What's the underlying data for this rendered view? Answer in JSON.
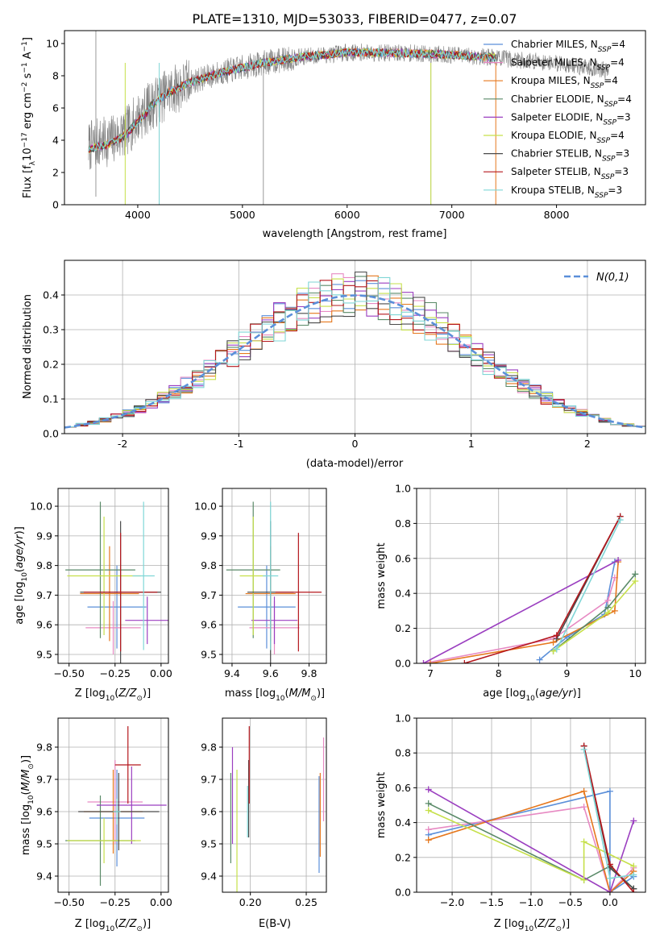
{
  "figure_title": "PLATE=1310, MJD=53033, FIBERID=0477, z=0.07",
  "colors": {
    "Chabrier MILES": "#5b8fd9",
    "Salpeter MILES": "#e78ac3",
    "Kroupa MILES": "#e6781e",
    "Chabrier ELODIE": "#5a8a68",
    "Salpeter ELODIE": "#9b3fc0",
    "Kroupa ELODIE": "#c6e04a",
    "Chabrier STELIB": "#4a4a4a",
    "Salpeter STELIB": "#b5171d",
    "Kroupa STELIB": "#7fd6d6",
    "data": "#808080",
    "normal": "#5b8fd9"
  },
  "model_order": [
    "Chabrier MILES",
    "Salpeter MILES",
    "Kroupa MILES",
    "Chabrier ELODIE",
    "Salpeter ELODIE",
    "Kroupa ELODIE",
    "Chabrier STELIB",
    "Salpeter STELIB",
    "Kroupa STELIB"
  ],
  "chart_data": [
    {
      "id": "spectrum",
      "type": "line",
      "title": "PLATE=1310, MJD=53033, FIBERID=0477, z=0.07",
      "xlabel": "wavelength [Angstrom, rest frame]",
      "ylabel": "Flux [f_λ 10^-17 erg cm^-2 s^-1 A^-1]",
      "xlim": [
        3300,
        8850
      ],
      "ylim": [
        0,
        10.8
      ],
      "xticks": [
        4000,
        5000,
        6000,
        7000,
        8000
      ],
      "yticks": [
        0,
        2,
        4,
        6,
        8,
        10
      ],
      "grid": false,
      "legend_position": "right",
      "legend": [
        {
          "name": "Chabrier MILES",
          "n_ssp": 4
        },
        {
          "name": "Salpeter MILES",
          "n_ssp": 4
        },
        {
          "name": "Kroupa MILES",
          "n_ssp": 4
        },
        {
          "name": "Chabrier ELODIE",
          "n_ssp": 4
        },
        {
          "name": "Salpeter ELODIE",
          "n_ssp": 3
        },
        {
          "name": "Kroupa ELODIE",
          "n_ssp": 4
        },
        {
          "name": "Chabrier STELIB",
          "n_ssp": 3
        },
        {
          "name": "Salpeter STELIB",
          "n_ssp": 3
        },
        {
          "name": "Kroupa STELIB",
          "n_ssp": 3
        }
      ],
      "continuum": {
        "wavelength": [
          3530,
          3600,
          3700,
          3800,
          3900,
          4000,
          4100,
          4200,
          4300,
          4400,
          4500,
          4600,
          4800,
          5000,
          5200,
          5400,
          5600,
          5800,
          6000,
          6200,
          6400,
          6600,
          6800,
          7000,
          7200,
          7400,
          7600,
          7800,
          8000,
          8200,
          8400,
          8500
        ],
        "flux": [
          3.6,
          3.8,
          3.9,
          4.2,
          4.6,
          5.4,
          6.0,
          6.5,
          7.0,
          7.3,
          7.6,
          7.8,
          8.2,
          8.5,
          8.8,
          9.0,
          9.2,
          9.3,
          9.45,
          9.45,
          9.4,
          9.4,
          9.35,
          9.3,
          9.2,
          9.15,
          9.0,
          8.9,
          8.8,
          8.6,
          8.4,
          8.3
        ]
      }
    },
    {
      "id": "residuals",
      "type": "line",
      "xlabel": "(data-model)/error",
      "ylabel": "Normed distribution",
      "xlim": [
        -2.5,
        2.5
      ],
      "ylim": [
        0,
        0.5
      ],
      "xticks": [
        -2,
        -1,
        0,
        1,
        2
      ],
      "yticks": [
        0.0,
        0.1,
        0.2,
        0.3,
        0.4
      ],
      "grid": true,
      "legend_position": "top-right",
      "normal_label": "N(0,1)",
      "bin_width": 0.1
    },
    {
      "id": "age_vs_Z",
      "type": "scatter",
      "xlabel": "Z [log10(Z/Z⊙)]",
      "ylabel": "age [log10(age/yr)]",
      "xlim": [
        -0.56,
        0.04
      ],
      "ylim": [
        9.47,
        10.06
      ],
      "xticks": [
        -0.5,
        -0.25,
        0.0
      ],
      "xtick_labels": [
        "−0.50",
        "−0.25",
        "0.00"
      ],
      "yticks": [
        9.5,
        9.6,
        9.7,
        9.8,
        9.9,
        10.0
      ],
      "grid": true,
      "points": [
        {
          "model": "Chabrier MILES",
          "x": -0.24,
          "xerr": 0.16,
          "y": 9.66,
          "yerr": 0.14
        },
        {
          "model": "Salpeter MILES",
          "x": -0.26,
          "xerr": 0.15,
          "y": 9.59,
          "yerr": 0.09
        },
        {
          "model": "Kroupa MILES",
          "x": -0.28,
          "xerr": 0.16,
          "y": 9.705,
          "yerr": 0.16
        },
        {
          "model": "Chabrier ELODIE",
          "x": -0.33,
          "xerr": 0.19,
          "y": 9.785,
          "yerr": 0.23
        },
        {
          "model": "Salpeter ELODIE",
          "x": -0.075,
          "xerr": 0.12,
          "y": 9.615,
          "yerr": 0.08
        },
        {
          "model": "Kroupa ELODIE",
          "x": -0.31,
          "xerr": 0.2,
          "y": 9.765,
          "yerr": 0.2
        },
        {
          "model": "Chabrier STELIB",
          "x": -0.22,
          "xerr": 0.22,
          "y": 9.71,
          "yerr": 0.24
        },
        {
          "model": "Salpeter STELIB",
          "x": -0.22,
          "xerr": 0.2,
          "y": 9.71,
          "yerr": 0.2
        },
        {
          "model": "Kroupa STELIB",
          "x": -0.095,
          "xerr": 0.06,
          "y": 9.765,
          "yerr": 0.25
        }
      ]
    },
    {
      "id": "age_vs_mass",
      "type": "scatter",
      "xlabel": "mass [log10(M/M⊙)]",
      "ylabel": "",
      "xlim": [
        9.35,
        9.89
      ],
      "ylim": [
        9.47,
        10.06
      ],
      "xticks": [
        9.4,
        9.6,
        9.8
      ],
      "yticks": [
        9.5,
        9.6,
        9.7,
        9.8,
        9.9,
        10.0
      ],
      "grid": true,
      "points": [
        {
          "model": "Chabrier MILES",
          "x": 9.58,
          "xerr": 0.15,
          "y": 9.66,
          "yerr": 0.14
        },
        {
          "model": "Salpeter MILES",
          "x": 9.62,
          "xerr": 0.13,
          "y": 9.59,
          "yerr": 0.09
        },
        {
          "model": "Kroupa MILES",
          "x": 9.6,
          "xerr": 0.13,
          "y": 9.705,
          "yerr": 0.16
        },
        {
          "model": "Chabrier ELODIE",
          "x": 9.51,
          "xerr": 0.14,
          "y": 9.785,
          "yerr": 0.23
        },
        {
          "model": "Salpeter ELODIE",
          "x": 9.62,
          "xerr": 0.12,
          "y": 9.615,
          "yerr": 0.08
        },
        {
          "model": "Kroupa ELODIE",
          "x": 9.51,
          "xerr": 0.07,
          "y": 9.765,
          "yerr": 0.2
        },
        {
          "model": "Chabrier STELIB",
          "x": 9.6,
          "xerr": 0.12,
          "y": 9.71,
          "yerr": 0.24
        },
        {
          "model": "Salpeter STELIB",
          "x": 9.745,
          "xerr": 0.12,
          "y": 9.71,
          "yerr": 0.2
        },
        {
          "model": "Kroupa STELIB",
          "x": 9.6,
          "xerr": 0.04,
          "y": 9.765,
          "yerr": 0.25
        }
      ]
    },
    {
      "id": "weight_vs_age",
      "type": "line",
      "xlabel": "age [log10(age/yr)]",
      "ylabel": "mass weight",
      "xlim": [
        6.8,
        10.15
      ],
      "ylim": [
        0.0,
        1.0
      ],
      "xticks": [
        7,
        8,
        9,
        10
      ],
      "yticks": [
        0.0,
        0.2,
        0.4,
        0.6,
        0.8,
        1.0
      ],
      "grid": true,
      "series": [
        {
          "model": "Chabrier MILES",
          "points": [
            [
              8.6,
              0.02
            ],
            [
              9.0,
              0.15
            ],
            [
              9.55,
              0.28
            ],
            [
              9.7,
              0.58
            ]
          ]
        },
        {
          "model": "Salpeter MILES",
          "points": [
            [
              6.9,
              0.0
            ],
            [
              8.8,
              0.14
            ],
            [
              9.6,
              0.36
            ],
            [
              9.7,
              0.49
            ]
          ]
        },
        {
          "model": "Kroupa MILES",
          "points": [
            [
              7.0,
              0.0
            ],
            [
              8.8,
              0.12
            ],
            [
              9.7,
              0.3
            ],
            [
              9.75,
              0.58
            ]
          ]
        },
        {
          "model": "Chabrier ELODIE",
          "points": [
            [
              8.8,
              0.07
            ],
            [
              9.6,
              0.32
            ],
            [
              10.0,
              0.51
            ]
          ]
        },
        {
          "model": "Salpeter ELODIE",
          "points": [
            [
              6.9,
              0.0
            ],
            [
              9.75,
              0.59
            ]
          ]
        },
        {
          "model": "Kroupa ELODIE",
          "points": [
            [
              8.8,
              0.07
            ],
            [
              9.6,
              0.29
            ],
            [
              10.0,
              0.47
            ]
          ]
        },
        {
          "model": "Chabrier STELIB",
          "points": [
            [
              8.85,
              0.14
            ],
            [
              9.78,
              0.84
            ]
          ]
        },
        {
          "model": "Salpeter STELIB",
          "points": [
            [
              7.5,
              0.0
            ],
            [
              8.85,
              0.16
            ],
            [
              9.78,
              0.84
            ]
          ]
        },
        {
          "model": "Kroupa STELIB",
          "points": [
            [
              8.85,
              0.08
            ],
            [
              9.78,
              0.82
            ]
          ]
        }
      ]
    },
    {
      "id": "mass_vs_Z",
      "type": "scatter",
      "xlabel": "Z [log10(Z/Z⊙)]",
      "ylabel": "mass [log10(M/M⊙)]",
      "xlim": [
        -0.56,
        0.04
      ],
      "ylim": [
        9.35,
        9.89
      ],
      "xticks": [
        -0.5,
        -0.25,
        0.0
      ],
      "xtick_labels": [
        "−0.50",
        "−0.25",
        "0.00"
      ],
      "yticks": [
        9.4,
        9.5,
        9.6,
        9.7,
        9.8
      ],
      "grid": true,
      "points": [
        {
          "model": "Chabrier MILES",
          "x": -0.24,
          "xerr": 0.15,
          "y": 9.58,
          "yerr": 0.15
        },
        {
          "model": "Salpeter MILES",
          "x": -0.25,
          "xerr": 0.15,
          "y": 9.63,
          "yerr": 0.13
        },
        {
          "model": "Kroupa MILES",
          "x": -0.26,
          "xerr": 0.16,
          "y": 9.6,
          "yerr": 0.13
        },
        {
          "model": "Chabrier ELODIE",
          "x": -0.33,
          "xerr": 0.19,
          "y": 9.51,
          "yerr": 0.14
        },
        {
          "model": "Salpeter ELODIE",
          "x": -0.16,
          "xerr": 0.19,
          "y": 9.62,
          "yerr": 0.12
        },
        {
          "model": "Kroupa ELODIE",
          "x": -0.31,
          "xerr": 0.2,
          "y": 9.51,
          "yerr": 0.07
        },
        {
          "model": "Chabrier STELIB",
          "x": -0.23,
          "xerr": 0.22,
          "y": 9.6,
          "yerr": 0.12
        },
        {
          "model": "Salpeter STELIB",
          "x": -0.18,
          "xerr": 0.07,
          "y": 9.745,
          "yerr": 0.12
        },
        {
          "model": "Kroupa STELIB",
          "x": -0.24,
          "xerr": 0.02,
          "y": 9.6,
          "yerr": 0.04
        }
      ]
    },
    {
      "id": "mass_vs_ebv",
      "type": "scatter",
      "xlabel": "E(B-V)",
      "ylabel": "",
      "xlim": [
        0.175,
        0.268
      ],
      "ylim": [
        9.35,
        9.89
      ],
      "xticks": [
        0.2,
        0.25
      ],
      "xtick_labels": [
        "0.20",
        "0.25"
      ],
      "yticks": [
        9.4,
        9.5,
        9.6,
        9.7,
        9.8
      ],
      "grid": true,
      "points": [
        {
          "model": "Chabrier MILES",
          "x": 0.2615,
          "xerr": 0.0,
          "y": 9.56,
          "yerr": 0.15
        },
        {
          "model": "Salpeter MILES",
          "x": 0.2655,
          "xerr": 0.0,
          "y": 9.7,
          "yerr": 0.13
        },
        {
          "model": "Kroupa MILES",
          "x": 0.2625,
          "xerr": 0.0,
          "y": 9.59,
          "yerr": 0.13
        },
        {
          "model": "Chabrier ELODIE",
          "x": 0.1825,
          "xerr": 0.0,
          "y": 9.58,
          "yerr": 0.14
        },
        {
          "model": "Salpeter ELODIE",
          "x": 0.184,
          "xerr": 0.0,
          "y": 9.65,
          "yerr": 0.15
        },
        {
          "model": "Kroupa ELODIE",
          "x": 0.188,
          "xerr": 0.0,
          "y": 9.51,
          "yerr": 0.22
        },
        {
          "model": "Chabrier STELIB",
          "x": 0.1985,
          "xerr": 0.0,
          "y": 9.64,
          "yerr": 0.12
        },
        {
          "model": "Salpeter STELIB",
          "x": 0.199,
          "xerr": 0.0,
          "y": 9.745,
          "yerr": 0.12
        },
        {
          "model": "Kroupa STELIB",
          "x": 0.1975,
          "xerr": 0.0,
          "y": 9.6,
          "yerr": 0.08
        }
      ]
    },
    {
      "id": "weight_vs_Z",
      "type": "line",
      "xlabel": "Z [log10(Z/Z⊙)]",
      "ylabel": "mass weight",
      "xlim": [
        -2.45,
        0.45
      ],
      "ylim": [
        0.0,
        1.0
      ],
      "xticks": [
        -2.0,
        -1.5,
        -1.0,
        -0.5,
        0.0
      ],
      "xtick_labels": [
        "−2.0",
        "−1.5",
        "−1.0",
        "−0.5",
        "0.0"
      ],
      "yticks": [
        0.0,
        0.2,
        0.4,
        0.6,
        0.8,
        1.0
      ],
      "grid": true,
      "series": [
        {
          "model": "Chabrier MILES",
          "points": [
            [
              -2.3,
              0.33
            ],
            [
              0.0,
              0.58
            ],
            [
              0.0,
              0.0
            ],
            [
              0.3,
              0.09
            ]
          ]
        },
        {
          "model": "Salpeter MILES",
          "points": [
            [
              -2.3,
              0.36
            ],
            [
              -0.33,
              0.49
            ],
            [
              0.0,
              0.0
            ],
            [
              0.3,
              0.14
            ]
          ]
        },
        {
          "model": "Kroupa MILES",
          "points": [
            [
              -2.3,
              0.3
            ],
            [
              -0.33,
              0.58
            ],
            [
              0.0,
              0.0
            ],
            [
              0.3,
              0.12
            ]
          ]
        },
        {
          "model": "Chabrier ELODIE",
          "points": [
            [
              -2.3,
              0.51
            ],
            [
              -0.33,
              0.07
            ],
            [
              0.0,
              0.15
            ],
            [
              0.3,
              0.02
            ]
          ]
        },
        {
          "model": "Salpeter ELODIE",
          "points": [
            [
              -2.3,
              0.59
            ],
            [
              0.0,
              0.0
            ],
            [
              0.3,
              0.41
            ]
          ]
        },
        {
          "model": "Kroupa ELODIE",
          "points": [
            [
              -2.3,
              0.47
            ],
            [
              -0.33,
              0.07
            ],
            [
              -0.33,
              0.29
            ],
            [
              0.3,
              0.15
            ]
          ]
        },
        {
          "model": "Chabrier STELIB",
          "points": [
            [
              -0.33,
              0.84
            ],
            [
              0.0,
              0.14
            ],
            [
              0.3,
              0.02
            ]
          ]
        },
        {
          "model": "Salpeter STELIB",
          "points": [
            [
              -0.33,
              0.84
            ],
            [
              0.0,
              0.16
            ],
            [
              0.3,
              0.0
            ]
          ]
        },
        {
          "model": "Kroupa STELIB",
          "points": [
            [
              -0.33,
              0.82
            ],
            [
              0.0,
              0.08
            ],
            [
              0.3,
              0.1
            ]
          ]
        }
      ]
    }
  ]
}
